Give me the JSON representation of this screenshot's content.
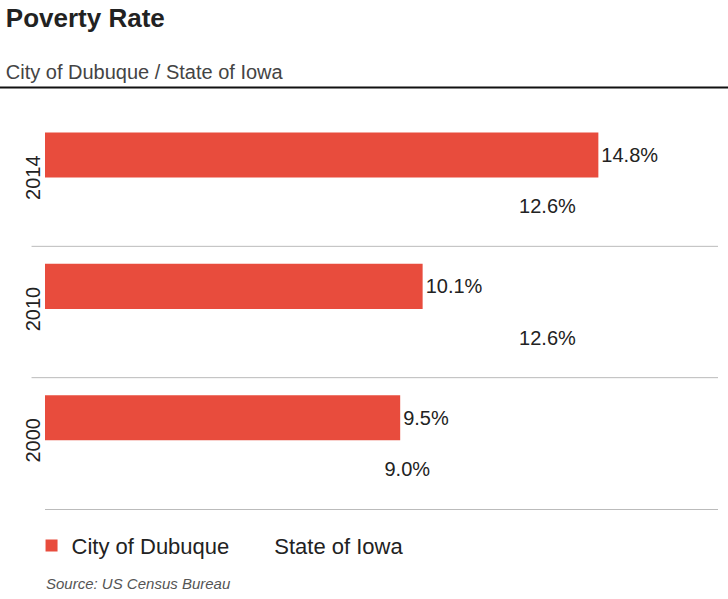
{
  "chart_data": {
    "type": "bar",
    "orientation": "horizontal",
    "title": "Poverty Rate",
    "subtitle": "City of Dubuque / State of Iowa",
    "source": "Source: US Census Bureau",
    "categories": [
      "2014",
      "2010",
      "2000"
    ],
    "series": [
      {
        "name": "City of Dubuque",
        "color": "#e84c3d",
        "values": [
          14.8,
          10.1,
          9.5
        ],
        "value_labels": [
          "14.8%",
          "10.1%",
          "9.5%"
        ]
      },
      {
        "name": "State of Iowa",
        "color": "#f4a19a",
        "values": [
          12.6,
          12.6,
          9.0
        ],
        "value_labels": [
          "12.6%",
          "12.6%",
          "9.0%"
        ]
      }
    ],
    "xlim": [
      0,
      18
    ],
    "grid": false,
    "legend": "bottom",
    "data_labels": true,
    "tick_labels": "y"
  }
}
